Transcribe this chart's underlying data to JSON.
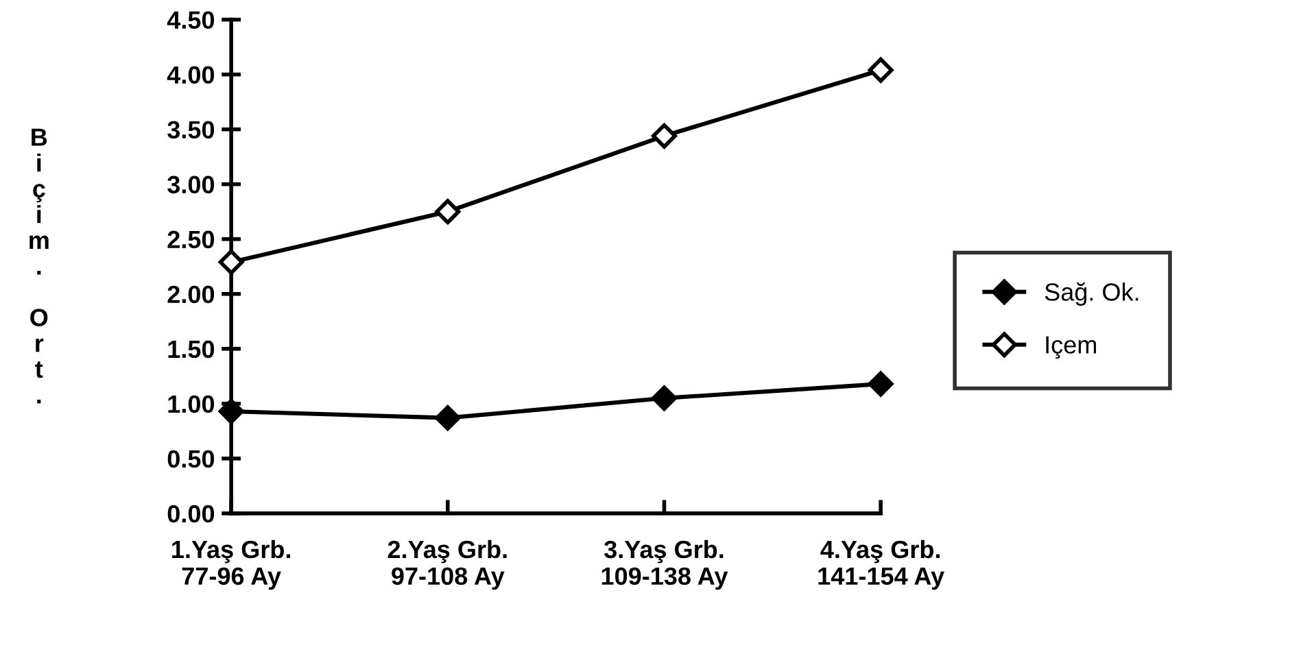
{
  "chart_data": {
    "type": "line",
    "ylabel": "Biçim. Ort.",
    "categories": [
      "1.Yaş Grb.\n77-96 Ay",
      "2.Yaş Grb.\n97-108 Ay",
      "3.Yaş Grb.\n109-138 Ay",
      "4.Yaş Grb.\n141-154 Ay"
    ],
    "series": [
      {
        "name": "Sağ. Ok.",
        "color": "#000000",
        "marker": "diamond",
        "values": [
          0.93,
          0.87,
          1.05,
          1.18
        ]
      },
      {
        "name": "Içem",
        "color": "#000000",
        "marker": "diamond",
        "values": [
          2.29,
          2.75,
          3.44,
          4.04
        ]
      }
    ],
    "ylim": [
      0,
      4.5
    ],
    "yticks": [
      {
        "value": 0,
        "label": "0.00"
      },
      {
        "value": 0.5,
        "label": "0.50"
      },
      {
        "value": 1,
        "label": "1.00"
      },
      {
        "value": 1.5,
        "label": "1.50"
      },
      {
        "value": 2,
        "label": "2.00"
      },
      {
        "value": 2.5,
        "label": "2.50"
      },
      {
        "value": 3,
        "label": "3.00"
      },
      {
        "value": 3.5,
        "label": "3.50"
      },
      {
        "value": 4,
        "label": "4.00"
      },
      {
        "value": 4.5,
        "label": "4.50"
      }
    ],
    "grid": false,
    "legend": "right",
    "line_style": "solid"
  }
}
